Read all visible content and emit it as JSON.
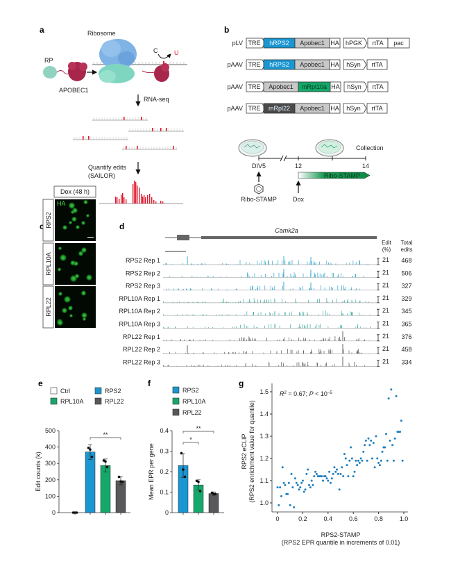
{
  "panel_letters": {
    "a": "a",
    "b": "b",
    "c": "c",
    "d": "d",
    "e": "e",
    "f": "f",
    "g": "g"
  },
  "panel_a": {
    "ribosome_label": "Ribosome",
    "rp_label": "RP",
    "apobec_label": "APOBEC1",
    "c_label": "C",
    "u_label": "U",
    "rnaseq_label": "RNA-seq",
    "quantify_label_1": "Quantify edits",
    "quantify_label_2": "(SAILOR)",
    "colors": {
      "ribosome_large": "#7fb2e5",
      "ribosome_small": "#7fd6c0",
      "apobec": "#a8264a",
      "rp": "#8fd3c0",
      "edit": "#e0182d"
    }
  },
  "panel_b": {
    "constructs": [
      {
        "vector": "pLV",
        "parts": [
          "TRE",
          "hRPS2",
          "Apobec1",
          "HA",
          "hPGK",
          "rtTA",
          "pac"
        ]
      },
      {
        "vector": "pAAV",
        "parts": [
          "TRE",
          "hRPS2",
          "Apobec1",
          "HA",
          "hSyn",
          "rtTA"
        ]
      },
      {
        "vector": "pAAV",
        "parts": [
          "TRE",
          "Apobec1",
          "mRpl10a",
          "HA",
          "hSyn",
          "rtTA"
        ]
      },
      {
        "vector": "pAAV",
        "parts": [
          "TRE",
          "mRpl22",
          "Apobec1",
          "HA",
          "hSyn",
          "rtTA"
        ]
      }
    ],
    "timeline": {
      "div5": "DIV5",
      "day12": "12",
      "day14": "14",
      "collection": "Collection",
      "ribo_stamp_bar": "Ribo-STAMP",
      "ribo_stamp_label": "Ribo-STAMP",
      "dox": "Dox"
    },
    "colors": {
      "rps2": "#1a96d0",
      "apobec": "#c8c8c8",
      "rpl10a": "#14a86a",
      "rpl22": "#4a4a4a"
    }
  },
  "panel_c": {
    "header": "Dox (48 h)",
    "ha_label": "HA",
    "rows": [
      "RPS2",
      "RPL10A",
      "RPL22"
    ]
  },
  "panel_d": {
    "gene": "Camk2a",
    "edit_header_1": "Edit",
    "edit_header_2": "(%)",
    "total_header_1": "Total",
    "total_header_2": "edits",
    "tracks": [
      {
        "label": "RPS2 Rep 1",
        "scale": "21",
        "total": "468",
        "color": "#2aa0c8"
      },
      {
        "label": "RPS2 Rep 2",
        "scale": "21",
        "total": "506",
        "color": "#2aa0c8"
      },
      {
        "label": "RPS2 Rep 3",
        "scale": "21",
        "total": "327",
        "color": "#2aa0c8"
      },
      {
        "label": "RPL10A Rep 1",
        "scale": "21",
        "total": "329",
        "color": "#3aa8a0"
      },
      {
        "label": "RPL10A Rep 2",
        "scale": "21",
        "total": "345",
        "color": "#3aa8a0"
      },
      {
        "label": "RPL10A Rep 3",
        "scale": "21",
        "total": "365",
        "color": "#3aa8a0"
      },
      {
        "label": "RPL22 Rep 1",
        "scale": "21",
        "total": "376",
        "color": "#555555"
      },
      {
        "label": "RPL22 Rep 2",
        "scale": "21",
        "total": "458",
        "color": "#555555"
      },
      {
        "label": "RPL22 Rep 3",
        "scale": "21",
        "total": "334",
        "color": "#555555"
      }
    ]
  },
  "chart_data": [
    {
      "id": "e",
      "type": "bar",
      "ylabel": "Edit counts (k)",
      "ylim": [
        0,
        500
      ],
      "yticks": [
        "0",
        "100",
        "200",
        "300",
        "400",
        "500"
      ],
      "legend": [
        {
          "name": "Ctrl",
          "color": "#ffffff"
        },
        {
          "name": "RPS2",
          "color": "#1a96d0"
        },
        {
          "name": "RPL10A",
          "color": "#14a86a"
        },
        {
          "name": "RPL22",
          "color": "#58585a"
        }
      ],
      "categories": [
        "Ctrl",
        "RPS2",
        "RPL10A",
        "RPL22"
      ],
      "values": [
        0,
        370,
        287,
        195
      ],
      "sd": [
        0,
        45,
        40,
        25
      ],
      "points": [
        [
          0,
          0,
          0
        ],
        [
          395,
          385,
          340
        ],
        [
          318,
          312,
          278
        ],
        [
          218,
          190,
          188
        ]
      ],
      "significance": [
        {
          "from": "RPS2",
          "to": "RPL22",
          "label": "**"
        }
      ]
    },
    {
      "id": "f",
      "type": "bar",
      "ylabel": "Mean EPR per gene",
      "ylim": [
        0,
        0.4
      ],
      "yticks": [
        "0",
        "0.1",
        "0.2",
        "0.3",
        "0.4"
      ],
      "legend": [
        {
          "name": "RPS2",
          "color": "#1a96d0"
        },
        {
          "name": "RPL10A",
          "color": "#14a86a"
        },
        {
          "name": "RPL22",
          "color": "#58585a"
        }
      ],
      "categories": [
        "RPS2",
        "RPL10A",
        "RPL22"
      ],
      "values": [
        0.23,
        0.135,
        0.093
      ],
      "sd": [
        0.058,
        0.025,
        0.008
      ],
      "points": [
        [
          0.29,
          0.21,
          0.175
        ],
        [
          0.155,
          0.15,
          0.105
        ],
        [
          0.097,
          0.09,
          0.091
        ]
      ],
      "significance": [
        {
          "from": "RPS2",
          "to": "RPL10A",
          "label": "*"
        },
        {
          "from": "RPS2",
          "to": "RPL22",
          "label": "**"
        }
      ]
    },
    {
      "id": "g",
      "type": "scatter",
      "color": "#1f7fbf",
      "annotation_r": "R",
      "annotation_rest": " = 0.67; ",
      "annotation_p": "P",
      "annotation_lt": " < 10",
      "annotation_exp": "−5",
      "xlabel": "RPS2-STAMP",
      "xlabel2": "(RPS2 EPR quantile in increments of 0.01)",
      "ylabel": "RPS2 eCLIP",
      "ylabel2": "(RPS2 enrichment value for quantile)",
      "xlim": [
        0,
        1.0
      ],
      "ylim": [
        0.97,
        1.52
      ],
      "xticks": [
        "0",
        "0.2",
        "0.4",
        "0.6",
        "0.8",
        "1.0"
      ],
      "yticks": [
        "1.0",
        "1.1",
        "1.2",
        "1.3",
        "1.4",
        "1.5"
      ],
      "x_step": 0.01,
      "y": [
        1.07,
        0.99,
        1.07,
        1.03,
        1.16,
        1.09,
        1.08,
        1.04,
        1.04,
        1.09,
        0.99,
        1.13,
        1.07,
        0.98,
        1.11,
        1.09,
        1.08,
        1.06,
        1.07,
        1.09,
        1.1,
        1.05,
        1.06,
        1.13,
        1.15,
        1.08,
        1.07,
        1.1,
        1.08,
        1.12,
        1.14,
        1.13,
        1.12,
        1.12,
        1.12,
        1.12,
        1.1,
        1.12,
        1.12,
        1.11,
        1.1,
        1.14,
        1.09,
        1.11,
        1.13,
        1.16,
        1.14,
        1.15,
        1.13,
        1.06,
        1.13,
        1.16,
        1.12,
        1.22,
        1.2,
        1.17,
        1.12,
        1.19,
        1.25,
        1.2,
        1.12,
        1.14,
        1.19,
        1.17,
        1.19,
        1.18,
        1.2,
        1.19,
        1.23,
        1.26,
        1.28,
        1.19,
        1.29,
        1.26,
        1.28,
        1.2,
        1.27,
        1.16,
        1.3,
        1.2,
        1.18,
        1.17,
        1.19,
        1.23,
        1.25,
        1.25,
        1.31,
        1.19,
        1.47,
        1.28,
        1.51,
        1.26,
        1.19,
        1.29,
        1.48,
        1.32,
        1.32,
        1.32,
        1.37,
        1.19
      ]
    }
  ]
}
